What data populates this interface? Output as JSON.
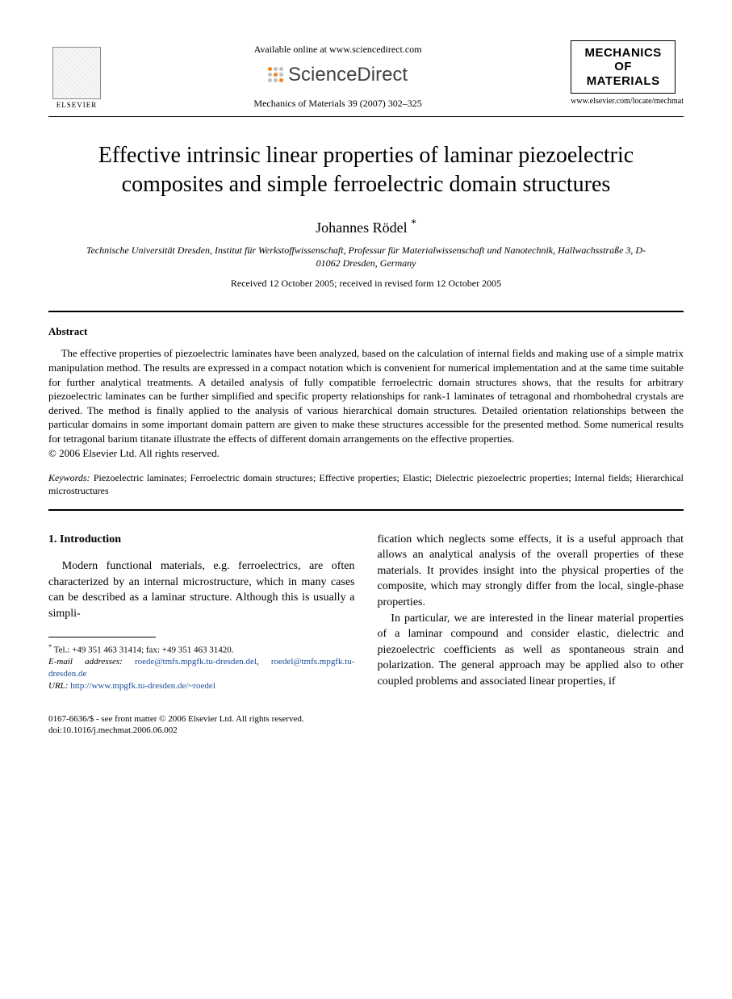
{
  "header": {
    "publisher_name": "ELSEVIER",
    "available_text": "Available online at www.sciencedirect.com",
    "sd_brand": "ScienceDirect",
    "citation": "Mechanics of Materials 39 (2007) 302–325",
    "journal_box_line1": "MECHANICS",
    "journal_box_line2": "OF",
    "journal_box_line3": "MATERIALS",
    "journal_url": "www.elsevier.com/locate/mechmat",
    "sd_dot_colors": [
      "#f58220",
      "#bfbfbf",
      "#bfbfbf",
      "#bfbfbf",
      "#f58220",
      "#bfbfbf",
      "#bfbfbf",
      "#bfbfbf",
      "#f58220"
    ]
  },
  "article": {
    "title": "Effective intrinsic linear properties of laminar piezoelectric composites and simple ferroelectric domain structures",
    "author": "Johannes Rödel",
    "author_marker": "*",
    "affiliation": "Technische Universität Dresden, Institut für Werkstoffwissenschaft, Professur für Materialwissenschaft und Nanotechnik, Hallwachsstraße 3, D-01062 Dresden, Germany",
    "dates": "Received 12 October 2005; received in revised form 12 October 2005"
  },
  "abstract": {
    "label": "Abstract",
    "text": "The effective properties of piezoelectric laminates have been analyzed, based on the calculation of internal fields and making use of a simple matrix manipulation method. The results are expressed in a compact notation which is convenient for numerical implementation and at the same time suitable for further analytical treatments. A detailed analysis of fully compatible ferroelectric domain structures shows, that the results for arbitrary piezoelectric laminates can be further simplified and specific property relationships for rank-1 laminates of tetragonal and rhombohedral crystals are derived. The method is finally applied to the analysis of various hierarchical domain structures. Detailed orientation relationships between the particular domains in some important domain pattern are given to make these structures accessible for the presented method. Some numerical results for tetragonal barium titanate illustrate the effects of different domain arrangements on the effective properties.",
    "copyright": "© 2006 Elsevier Ltd. All rights reserved."
  },
  "keywords": {
    "label": "Keywords:",
    "text": "Piezoelectric laminates; Ferroelectric domain structures; Effective properties; Elastic; Dielectric piezoelectric properties; Internal fields; Hierarchical microstructures"
  },
  "body": {
    "section_number": "1.",
    "section_title": "Introduction",
    "left_para": "Modern functional materials, e.g. ferroelectrics, are often characterized by an internal microstructure, which in many cases can be described as a laminar structure. Although this is usually a simpli-",
    "right_para1": "fication which neglects some effects, it is a useful approach that allows an analytical analysis of the overall properties of these materials. It provides insight into the physical properties of the composite, which may strongly differ from the local, single-phase properties.",
    "right_para2": "In particular, we are interested in the linear material properties of a laminar compound and consider elastic, dielectric and piezoelectric coefficients as well as spontaneous strain and polarization. The general approach may be applied also to other coupled problems and associated linear properties, if"
  },
  "footnote": {
    "marker": "*",
    "tel": "Tel.: +49 351 463 31414; fax: +49 351 463 31420.",
    "email_label": "E-mail addresses:",
    "email1": "roede@tmfs.mpgfk.tu-dresden.del",
    "email2": "roedel@tmfs.mpgfk.tu-dresden.de",
    "url_label": "URL:",
    "url": "http://www.mpgfk.tu-dresden.de/~roedel"
  },
  "footer": {
    "line1": "0167-6636/$ - see front matter © 2006 Elsevier Ltd. All rights reserved.",
    "line2": "doi:10.1016/j.mechmat.2006.06.002"
  },
  "colors": {
    "link": "#1a4b9b",
    "text": "#000000",
    "background": "#ffffff"
  }
}
